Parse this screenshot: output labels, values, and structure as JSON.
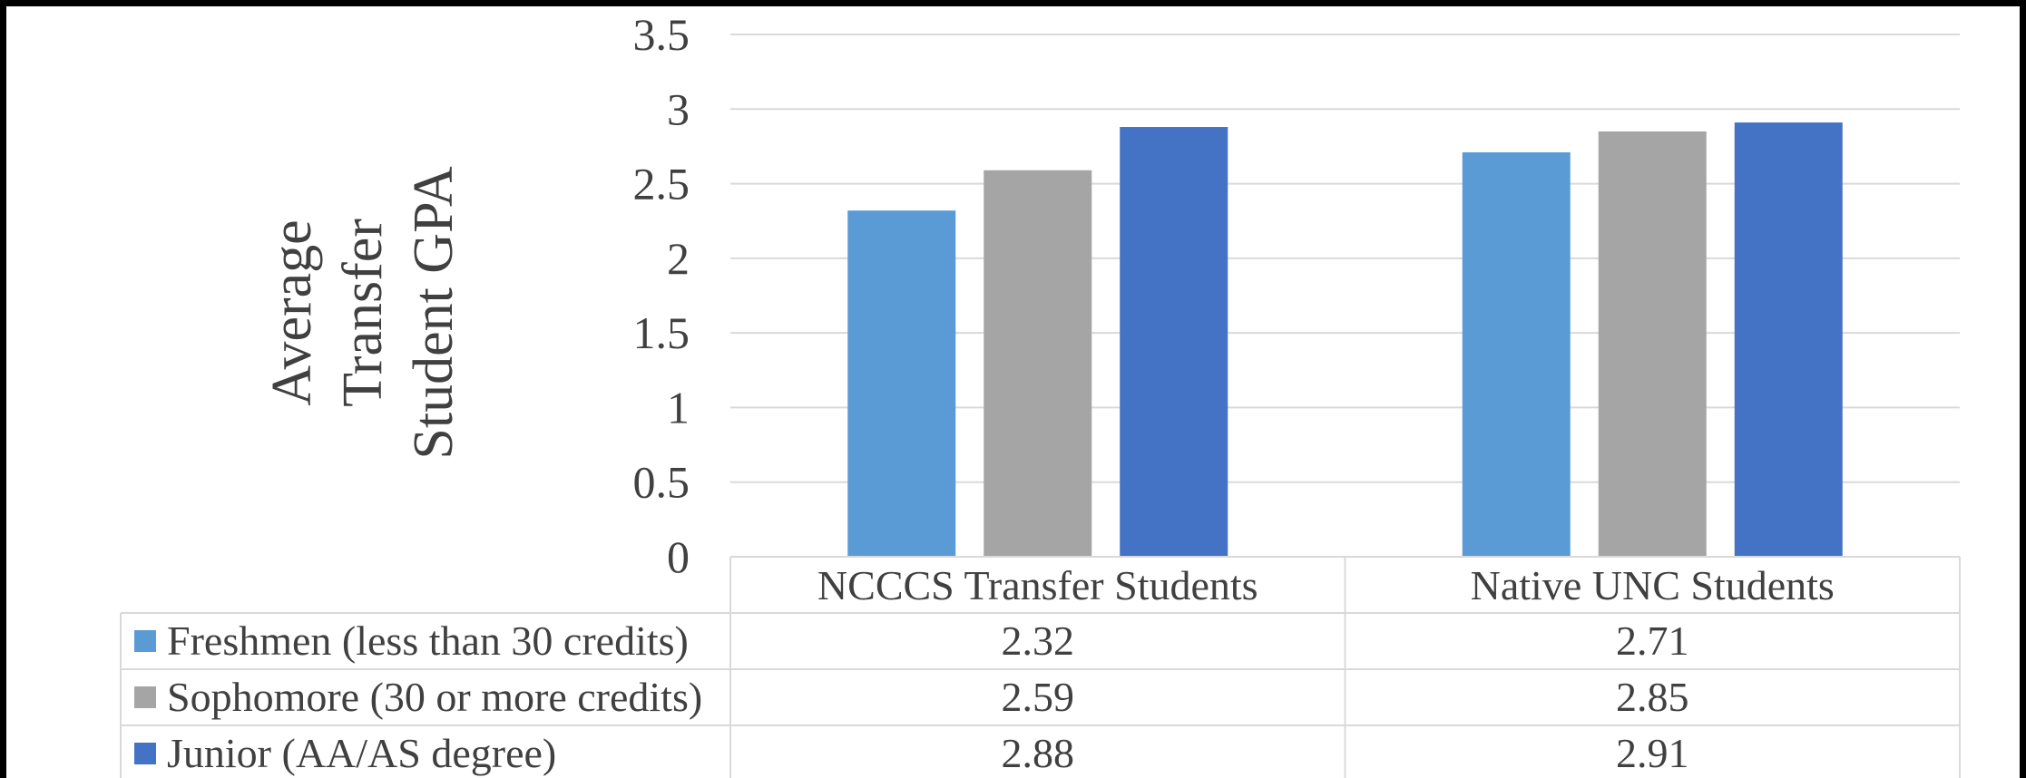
{
  "chart_data": {
    "type": "bar",
    "title": "",
    "ylabel": "Average Transfer Student GPA",
    "ylabel_lines": [
      "Average",
      "Transfer",
      "Student GPA"
    ],
    "xlabel": "",
    "ylim": [
      0,
      3.5
    ],
    "yticks": [
      "0",
      "0.5",
      "1",
      "1.5",
      "2",
      "2.5",
      "3",
      "3.5"
    ],
    "grid": true,
    "legend": "data-table",
    "categories": [
      "NCCCS Transfer Students",
      "Native UNC Students"
    ],
    "series": [
      {
        "name": "Freshmen (less than 30 credits)",
        "color": "#5B9BD5",
        "values": [
          2.32,
          2.71
        ],
        "labels": [
          "2.32",
          "2.71"
        ]
      },
      {
        "name": "Sophomore (30 or more credits)",
        "color": "#A5A5A5",
        "values": [
          2.59,
          2.85
        ],
        "labels": [
          "2.59",
          "2.85"
        ]
      },
      {
        "name": "Junior (AA/AS degree)",
        "color": "#4472C4",
        "values": [
          2.88,
          2.91
        ],
        "labels": [
          "2.88",
          "2.91"
        ]
      }
    ]
  }
}
